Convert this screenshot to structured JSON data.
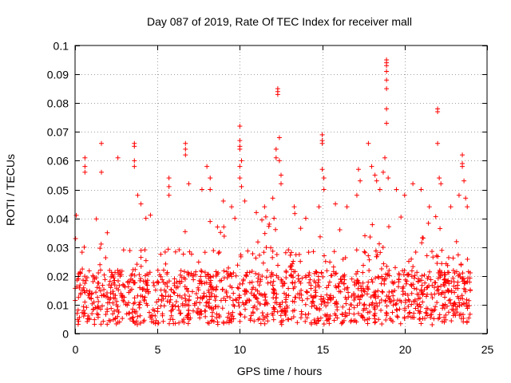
{
  "chart_data": {
    "type": "scatter",
    "title": "Day 087 of 2019, Rate Of TEC Index for receiver mall",
    "xlabel": "GPS time / hours",
    "ylabel": "ROTI / TECUs",
    "xlim": [
      0,
      25
    ],
    "ylim": [
      0,
      0.1
    ],
    "xticks": [
      0,
      5,
      10,
      15,
      20,
      25
    ],
    "xtick_labels": [
      "0",
      "5",
      "10",
      "15",
      "20",
      "25"
    ],
    "yticks": [
      0,
      0.01,
      0.02,
      0.03,
      0.04,
      0.05,
      0.06,
      0.07,
      0.08,
      0.09,
      0.1
    ],
    "ytick_labels": [
      "0",
      "0.01",
      "0.02",
      "0.03",
      "0.04",
      "0.05",
      "0.06",
      "0.07",
      "0.08",
      "0.09",
      "0.1"
    ],
    "grid": true,
    "marker": "+",
    "color": "#ff0000",
    "series": [
      {
        "name": "ROTI",
        "dense_band": {
          "x_range": [
            0,
            24
          ],
          "typical_min": 0.003,
          "typical_max": 0.03,
          "count": 1400
        },
        "points": [
          [
            0.6,
            0.061
          ],
          [
            0.6,
            0.058
          ],
          [
            0.6,
            0.056
          ],
          [
            1.6,
            0.066
          ],
          [
            1.6,
            0.056
          ],
          [
            2.6,
            0.061
          ],
          [
            3.6,
            0.066
          ],
          [
            3.6,
            0.065
          ],
          [
            3.6,
            0.06
          ],
          [
            3.6,
            0.058
          ],
          [
            3.8,
            0.048
          ],
          [
            4.0,
            0.045
          ],
          [
            4.3,
            0.04
          ],
          [
            5.7,
            0.054
          ],
          [
            5.7,
            0.051
          ],
          [
            5.7,
            0.048
          ],
          [
            6.7,
            0.066
          ],
          [
            6.7,
            0.064
          ],
          [
            6.7,
            0.062
          ],
          [
            6.9,
            0.052
          ],
          [
            7.7,
            0.05
          ],
          [
            8.0,
            0.058
          ],
          [
            8.2,
            0.054
          ],
          [
            8.2,
            0.05
          ],
          [
            9.0,
            0.046
          ],
          [
            9.5,
            0.044
          ],
          [
            9.7,
            0.04
          ],
          [
            10.0,
            0.072
          ],
          [
            10.0,
            0.067
          ],
          [
            10.0,
            0.065
          ],
          [
            10.0,
            0.064
          ],
          [
            10.1,
            0.06
          ],
          [
            10.0,
            0.058
          ],
          [
            10.0,
            0.054
          ],
          [
            10.1,
            0.051
          ],
          [
            10.3,
            0.046
          ],
          [
            11.0,
            0.042
          ],
          [
            11.5,
            0.044
          ],
          [
            12.0,
            0.047
          ],
          [
            12.2,
            0.064
          ],
          [
            12.2,
            0.061
          ],
          [
            12.3,
            0.085
          ],
          [
            12.3,
            0.084
          ],
          [
            12.3,
            0.083
          ],
          [
            12.4,
            0.068
          ],
          [
            12.4,
            0.06
          ],
          [
            12.5,
            0.055
          ],
          [
            12.5,
            0.052
          ],
          [
            13.3,
            0.044
          ],
          [
            14.0,
            0.04
          ],
          [
            14.8,
            0.044
          ],
          [
            15.0,
            0.069
          ],
          [
            15.0,
            0.067
          ],
          [
            15.0,
            0.066
          ],
          [
            15.0,
            0.057
          ],
          [
            15.1,
            0.054
          ],
          [
            15.1,
            0.05
          ],
          [
            15.8,
            0.045
          ],
          [
            16.5,
            0.044
          ],
          [
            17.1,
            0.048
          ],
          [
            17.2,
            0.057
          ],
          [
            17.3,
            0.053
          ],
          [
            17.8,
            0.066
          ],
          [
            18.0,
            0.058
          ],
          [
            18.2,
            0.055
          ],
          [
            18.3,
            0.053
          ],
          [
            18.5,
            0.05
          ],
          [
            18.9,
            0.095
          ],
          [
            18.9,
            0.094
          ],
          [
            18.9,
            0.093
          ],
          [
            18.9,
            0.091
          ],
          [
            18.9,
            0.088
          ],
          [
            18.9,
            0.085
          ],
          [
            18.9,
            0.078
          ],
          [
            18.9,
            0.073
          ],
          [
            18.8,
            0.061
          ],
          [
            18.7,
            0.056
          ],
          [
            19.0,
            0.054
          ],
          [
            19.5,
            0.05
          ],
          [
            20.0,
            0.048
          ],
          [
            20.5,
            0.052
          ],
          [
            21.0,
            0.05
          ],
          [
            21.5,
            0.044
          ],
          [
            22.0,
            0.078
          ],
          [
            22.0,
            0.077
          ],
          [
            22.0,
            0.066
          ],
          [
            22.1,
            0.054
          ],
          [
            22.2,
            0.052
          ],
          [
            22.8,
            0.044
          ],
          [
            23.3,
            0.048
          ],
          [
            23.5,
            0.062
          ],
          [
            23.5,
            0.059
          ],
          [
            23.5,
            0.058
          ],
          [
            23.6,
            0.053
          ],
          [
            23.7,
            0.047
          ],
          [
            23.8,
            0.044
          ]
        ]
      }
    ]
  }
}
